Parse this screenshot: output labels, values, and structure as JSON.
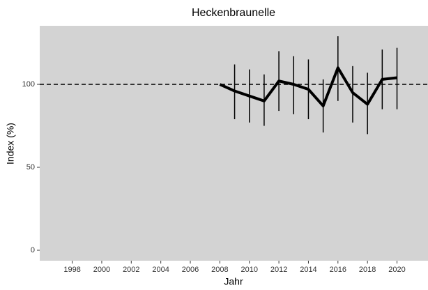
{
  "chart_data": {
    "type": "line",
    "title": "Heckenbraunelle",
    "x_label": "Jahr",
    "y_label": "Index (%)",
    "x": [
      2008,
      2009,
      2010,
      2011,
      2012,
      2013,
      2014,
      2015,
      2016,
      2017,
      2018,
      2019,
      2020
    ],
    "series": [
      {
        "color": "#000000",
        "values": [
          100,
          96,
          93,
          90,
          102,
          100,
          97,
          87,
          110,
          95,
          88,
          103,
          104
        ],
        "lower": [
          null,
          79,
          77,
          75,
          84,
          82,
          79,
          71,
          90,
          77,
          70,
          85,
          85
        ],
        "upper": [
          null,
          112,
          109,
          106,
          120,
          117,
          115,
          103,
          129,
          111,
          107,
          121,
          122
        ]
      }
    ],
    "reference_line": 100,
    "xlim": [
      1995.8,
      2022.1
    ],
    "xticks": [
      1998,
      2000,
      2002,
      2004,
      2006,
      2008,
      2010,
      2012,
      2014,
      2016,
      2018,
      2020
    ],
    "ylim": [
      -6.3,
      135.3
    ],
    "yticks": [
      0,
      50,
      100
    ],
    "grid": false,
    "panel_color": "#d3d3d3"
  }
}
